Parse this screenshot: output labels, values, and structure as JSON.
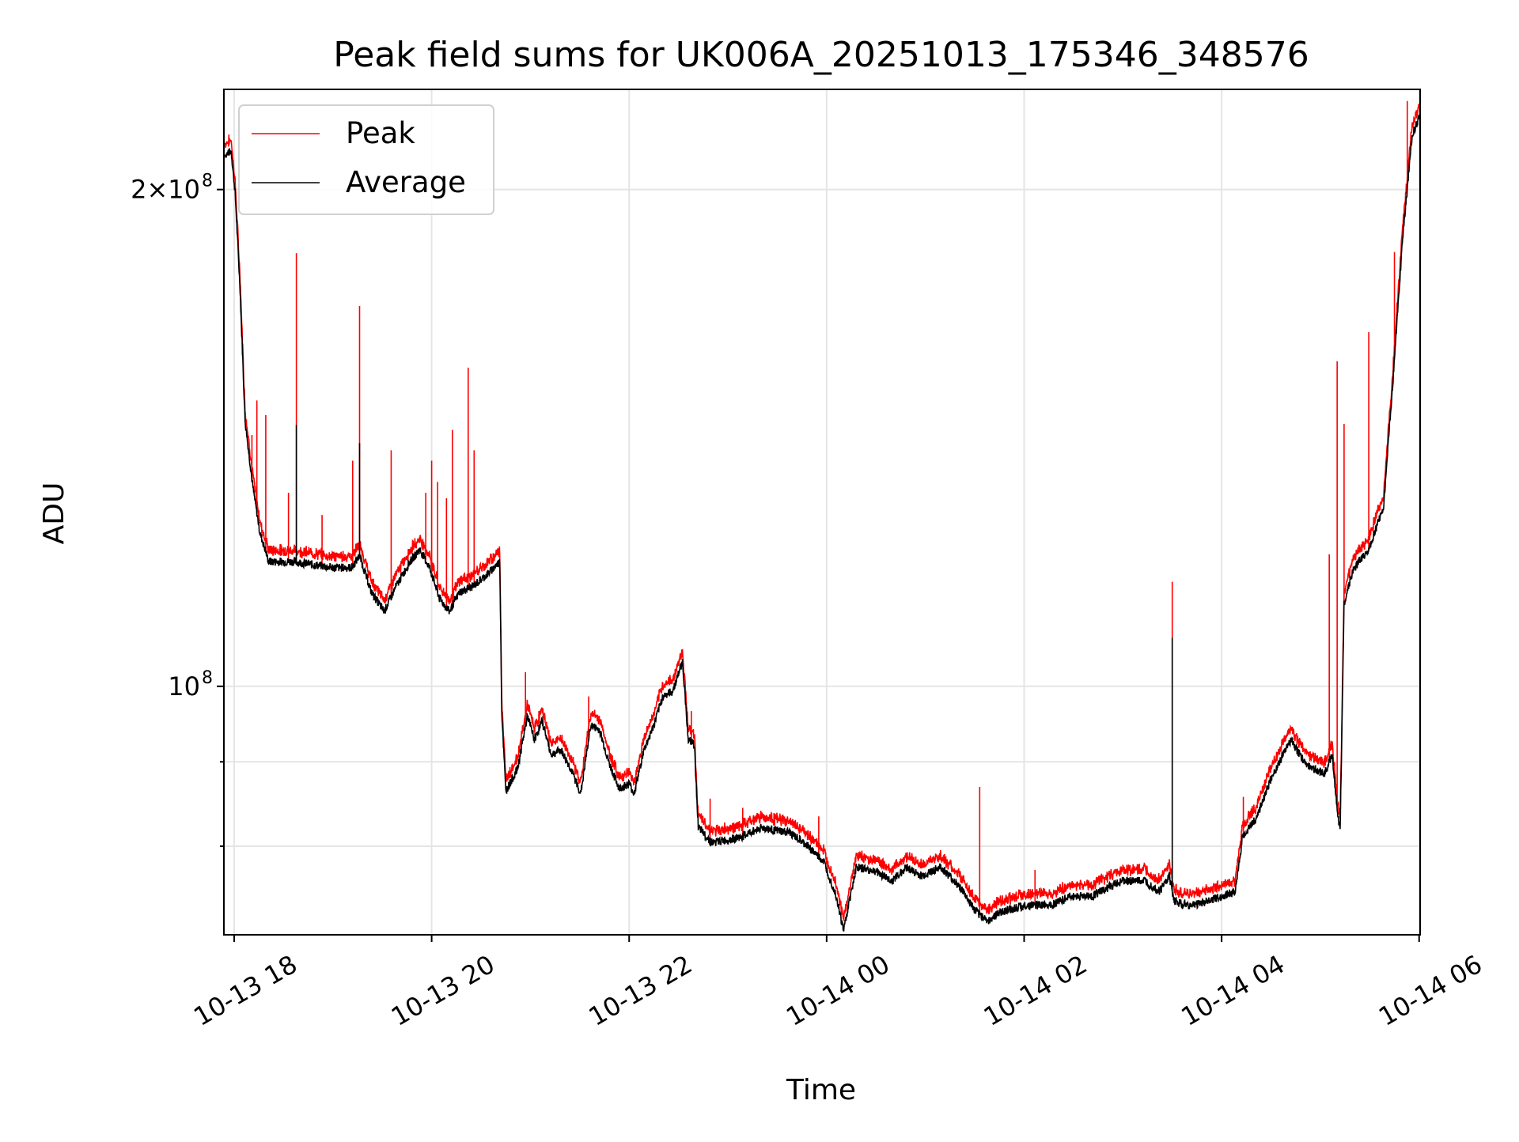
{
  "chart_data": {
    "type": "line",
    "title": "Peak field sums for UK006A_20251013_175346_348576",
    "xlabel": "Time",
    "ylabel": "ADU",
    "x_units": "hours since 10-13 00:00",
    "y_units": "ADU x 1e6",
    "y_scale": "log",
    "xlim": [
      17.896,
      30.01
    ],
    "ylim": [
      70.7,
      230
    ],
    "grid": true,
    "legend_position": "top-left",
    "legend": [
      {
        "name": "Peak",
        "color": "#ff0000"
      },
      {
        "name": "Average",
        "color": "#000000"
      }
    ],
    "x_ticks": [
      {
        "value": 18,
        "label": "10-13 18"
      },
      {
        "value": 20,
        "label": "10-13 20"
      },
      {
        "value": 22,
        "label": "10-13 22"
      },
      {
        "value": 24,
        "label": "10-14 00"
      },
      {
        "value": 26,
        "label": "10-14 02"
      },
      {
        "value": 28,
        "label": "10-14 04"
      },
      {
        "value": 30,
        "label": "10-14 06"
      }
    ],
    "y_ticks": [
      {
        "value": 200,
        "label": "2×10",
        "exp": "8",
        "major": true
      },
      {
        "value": 100,
        "label": "10",
        "exp": "8",
        "major": true
      },
      {
        "value": 90,
        "label": "",
        "exp": "",
        "major": false
      },
      {
        "value": 80,
        "label": "",
        "exp": "",
        "major": false
      }
    ],
    "average": {
      "x": [
        17.91,
        17.97,
        18.01,
        18.06,
        18.11,
        18.19,
        18.26,
        18.35,
        18.6,
        19.0,
        19.19,
        19.27,
        19.39,
        19.52,
        19.64,
        19.78,
        19.88,
        19.98,
        20.08,
        20.18,
        20.28,
        20.42,
        20.57,
        20.69,
        20.71,
        20.75,
        20.87,
        20.97,
        21.04,
        21.12,
        21.21,
        21.31,
        21.41,
        21.51,
        21.61,
        21.7,
        21.8,
        21.9,
        22.0,
        22.05,
        22.15,
        22.25,
        22.34,
        22.44,
        22.54,
        22.6,
        22.66,
        22.7,
        22.84,
        23.13,
        23.33,
        23.63,
        23.82,
        23.97,
        24.1,
        24.17,
        24.3,
        24.51,
        24.66,
        24.81,
        24.96,
        25.15,
        25.35,
        25.5,
        25.63,
        25.79,
        25.99,
        26.29,
        26.48,
        26.68,
        26.98,
        27.22,
        27.37,
        27.47,
        27.52,
        27.67,
        27.86,
        28.14,
        28.21,
        28.35,
        28.5,
        28.7,
        28.85,
        29.04,
        29.12,
        29.16,
        29.2,
        29.24,
        29.32,
        29.39,
        29.49,
        29.64,
        29.73,
        29.83,
        29.93,
        30.01
      ],
      "y": [
        210,
        211,
        199,
        174,
        145,
        132,
        124,
        119,
        119,
        118,
        118,
        120,
        114,
        111,
        115,
        119,
        121,
        118,
        113,
        111,
        114,
        115,
        117,
        119,
        96.6,
        86.4,
        89.1,
        96,
        92.8,
        95.3,
        90.9,
        91.5,
        89.1,
        86.1,
        94.7,
        94.1,
        89.7,
        86.7,
        87.3,
        86.1,
        91.5,
        94.7,
        98.6,
        99.3,
        103.5,
        92.8,
        92.2,
        82.1,
        80.4,
        81.0,
        82.1,
        81.5,
        79.9,
        78.3,
        74.6,
        71.1,
        77.7,
        77.2,
        76.2,
        77.7,
        76.7,
        77.7,
        75.6,
        73.1,
        72.1,
        73.1,
        73.6,
        73.8,
        74.6,
        74.6,
        76.2,
        76.2,
        75.1,
        76.7,
        74.1,
        73.6,
        74.1,
        75.1,
        81.0,
        83.2,
        87.9,
        92.8,
        89.7,
        88.5,
        90.9,
        85.5,
        81.5,
        112.3,
        117,
        119,
        121,
        128.6,
        151.5,
        185.8,
        215.9,
        221.8
      ]
    },
    "peak_offset_ratio": 1.012,
    "peak_spikes": {
      "x": [
        18.18,
        18.23,
        18.32,
        18.55,
        18.63,
        18.89,
        19.2,
        19.27,
        19.59,
        19.94,
        20.0,
        20.06,
        20.15,
        20.21,
        20.37,
        20.43,
        20.95,
        21.59,
        22.63,
        22.82,
        23.15,
        23.92,
        25.55,
        26.11,
        27.5,
        28.22,
        29.09,
        29.17,
        29.24,
        29.49,
        29.75,
        29.88,
        30.01
      ],
      "y": [
        142,
        149,
        146,
        131,
        183,
        127,
        137,
        170,
        139,
        131,
        137,
        133,
        130,
        143,
        156,
        139,
        102,
        98.6,
        96.6,
        85.5,
        84.4,
        83.4,
        86.9,
        77.4,
        115.7,
        85.7,
        120.2,
        157.4,
        144.2,
        163.9,
        183.3,
        226.3,
        230
      ]
    },
    "average_spikes": {
      "x": [
        18.63,
        19.27,
        27.5
      ],
      "y": [
        144,
        140.4,
        107
      ]
    }
  }
}
